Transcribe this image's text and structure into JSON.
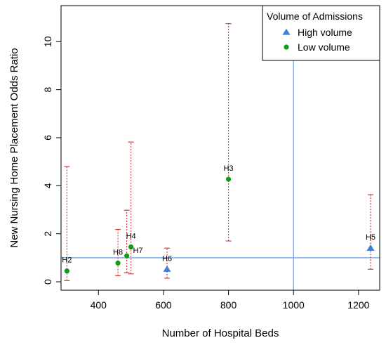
{
  "chart_data": {
    "type": "scatter",
    "title": "",
    "xlabel": "Number of Hospital Beds",
    "ylabel": "New Nursing Home Placement Odds Ratio",
    "xlim": [
      285,
      1265
    ],
    "ylim": [
      -0.35,
      11.5
    ],
    "x_ticks": [
      400,
      600,
      800,
      1000,
      1200
    ],
    "y_ticks": [
      0,
      2,
      4,
      6,
      8,
      10
    ],
    "reference_lines": {
      "x": 1000,
      "y": 1,
      "color": "#6a9fd6"
    },
    "errorbar_color": "#cc4444",
    "legend": {
      "title": "Volume of Admissions",
      "placement": "top-right",
      "entries": [
        {
          "name": "High volume",
          "marker": "triangle",
          "color": "#3a7fd8"
        },
        {
          "name": "Low volume",
          "marker": "circle",
          "color": "#109a1a"
        }
      ]
    },
    "points": [
      {
        "label": "H2",
        "group": "Low volume",
        "x": 303,
        "y": 0.45,
        "lower": 0.05,
        "upper": 4.8
      },
      {
        "label": "H8",
        "group": "Low volume",
        "x": 460,
        "y": 0.78,
        "lower": 0.25,
        "upper": 2.18
      },
      {
        "label": "H7",
        "group": "Low volume",
        "x": 487,
        "y": 1.08,
        "lower": 0.38,
        "upper": 2.98
      },
      {
        "label": "H4",
        "group": "Low volume",
        "x": 500,
        "y": 1.45,
        "lower": 0.33,
        "upper": 5.82
      },
      {
        "label": "H6",
        "group": "High volume",
        "x": 611,
        "y": 0.52,
        "lower": 0.15,
        "upper": 1.4
      },
      {
        "label": "H3",
        "group": "Low volume",
        "x": 800,
        "y": 4.27,
        "lower": 1.7,
        "upper": 10.75
      },
      {
        "label": "H5",
        "group": "High volume",
        "x": 1237,
        "y": 1.4,
        "lower": 0.52,
        "upper": 3.63
      }
    ]
  }
}
